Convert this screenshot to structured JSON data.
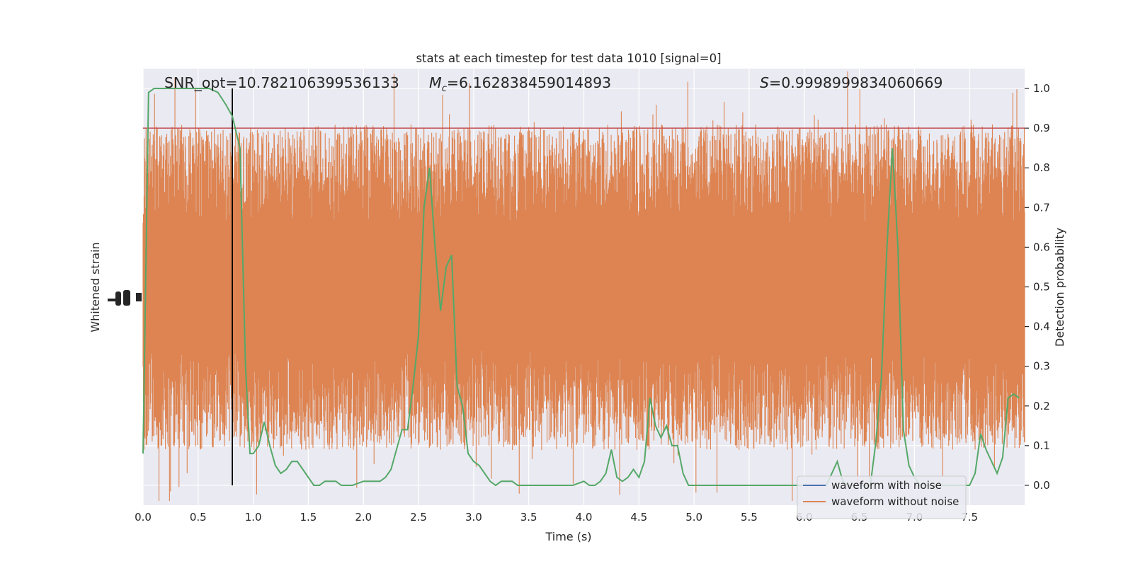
{
  "chart_data": {
    "type": "line",
    "title": "stats at each timestep for test data 1010 [signal=0]",
    "xlabel": "Time (s)",
    "ylabel_left": "Whitened strain",
    "ylabel_right": "Detection probability",
    "xlim": [
      0,
      8
    ],
    "ylim_right": [
      -0.05,
      1.05
    ],
    "x_ticks": [
      "0.0",
      "0.5",
      "1.0",
      "1.5",
      "2.0",
      "2.5",
      "3.0",
      "3.5",
      "4.0",
      "4.5",
      "5.0",
      "5.5",
      "6.0",
      "6.5",
      "7.0",
      "7.5"
    ],
    "y_ticks_right": [
      "0.0",
      "0.1",
      "0.2",
      "0.3",
      "0.4",
      "0.5",
      "0.6",
      "0.7",
      "0.8",
      "0.9",
      "1.0"
    ],
    "grid": true,
    "annotations": {
      "snr": "SNR_opt=10.782106399536133",
      "mc_symbol": "M",
      "mc_sub": "c",
      "mc_value": "=6.162838459014893",
      "s_symbol": "S",
      "s_value": "=0.9998999834060669"
    },
    "threshold": 0.9,
    "marker_time": 0.81,
    "legend": {
      "position": "lower-right",
      "entries": [
        "waveform with noise",
        "waveform without noise"
      ]
    },
    "series": [
      {
        "name": "Detection probability",
        "color": "#55a868",
        "x": [
          0.0,
          0.05,
          0.1,
          0.15,
          0.2,
          0.3,
          0.4,
          0.5,
          0.6,
          0.68,
          0.75,
          0.81,
          0.88,
          0.93,
          0.97,
          1.0,
          1.05,
          1.1,
          1.15,
          1.2,
          1.25,
          1.3,
          1.35,
          1.4,
          1.45,
          1.5,
          1.55,
          1.6,
          1.65,
          1.7,
          1.75,
          1.8,
          1.9,
          2.0,
          2.05,
          2.1,
          2.15,
          2.2,
          2.25,
          2.3,
          2.35,
          2.4,
          2.45,
          2.5,
          2.55,
          2.6,
          2.65,
          2.7,
          2.75,
          2.8,
          2.85,
          2.9,
          2.95,
          3.0,
          3.05,
          3.1,
          3.15,
          3.2,
          3.25,
          3.3,
          3.35,
          3.4,
          3.45,
          3.5,
          3.6,
          3.7,
          3.8,
          3.9,
          4.0,
          4.05,
          4.1,
          4.15,
          4.2,
          4.25,
          4.3,
          4.35,
          4.4,
          4.45,
          4.5,
          4.55,
          4.6,
          4.65,
          4.7,
          4.75,
          4.8,
          4.85,
          4.9,
          4.95,
          5.0,
          5.05,
          5.1,
          5.15,
          5.2,
          5.3,
          5.4,
          5.5,
          5.6,
          5.7,
          5.8,
          5.9,
          6.0,
          6.1,
          6.2,
          6.3,
          6.35,
          6.4,
          6.45,
          6.5,
          6.55,
          6.6,
          6.65,
          6.7,
          6.75,
          6.8,
          6.85,
          6.9,
          6.95,
          7.0,
          7.05,
          7.1,
          7.15,
          7.2,
          7.3,
          7.4,
          7.5,
          7.55,
          7.6,
          7.65,
          7.7,
          7.75,
          7.8,
          7.85,
          7.9,
          7.95
        ],
        "y": [
          0.08,
          0.99,
          1.0,
          1.0,
          1.0,
          1.0,
          1.0,
          1.0,
          1.0,
          0.99,
          0.96,
          0.93,
          0.85,
          0.3,
          0.08,
          0.08,
          0.1,
          0.16,
          0.1,
          0.05,
          0.03,
          0.04,
          0.06,
          0.06,
          0.04,
          0.02,
          0.0,
          0.0,
          0.01,
          0.01,
          0.01,
          0.0,
          0.0,
          0.01,
          0.01,
          0.01,
          0.01,
          0.02,
          0.04,
          0.09,
          0.14,
          0.14,
          0.25,
          0.38,
          0.7,
          0.8,
          0.6,
          0.44,
          0.55,
          0.58,
          0.25,
          0.2,
          0.08,
          0.06,
          0.05,
          0.03,
          0.01,
          0.0,
          0.01,
          0.01,
          0.01,
          0.0,
          0.0,
          0.0,
          0.0,
          0.0,
          0.0,
          0.0,
          0.01,
          0.0,
          0.0,
          0.01,
          0.03,
          0.09,
          0.02,
          0.01,
          0.02,
          0.04,
          0.02,
          0.06,
          0.22,
          0.15,
          0.12,
          0.15,
          0.1,
          0.1,
          0.03,
          0.0,
          0.0,
          0.0,
          0.0,
          0.0,
          0.0,
          0.0,
          0.0,
          0.0,
          0.0,
          0.0,
          0.0,
          0.0,
          0.0,
          0.0,
          0.0,
          0.06,
          0.01,
          0.0,
          0.0,
          0.0,
          0.0,
          0.0,
          0.11,
          0.27,
          0.6,
          0.85,
          0.6,
          0.14,
          0.05,
          0.02,
          0.0,
          0.0,
          0.0,
          0.0,
          0.0,
          0.0,
          0.0,
          0.03,
          0.13,
          0.09,
          0.06,
          0.03,
          0.07,
          0.22,
          0.23,
          0.22
        ]
      }
    ]
  },
  "colors": {
    "axes_bg": "#eaeaf2",
    "grid": "#ffffff",
    "noise": "#dd8452",
    "clean": "#4c72b0",
    "prob": "#55a868",
    "threshold": "#c44e52",
    "marker": "#000000"
  }
}
